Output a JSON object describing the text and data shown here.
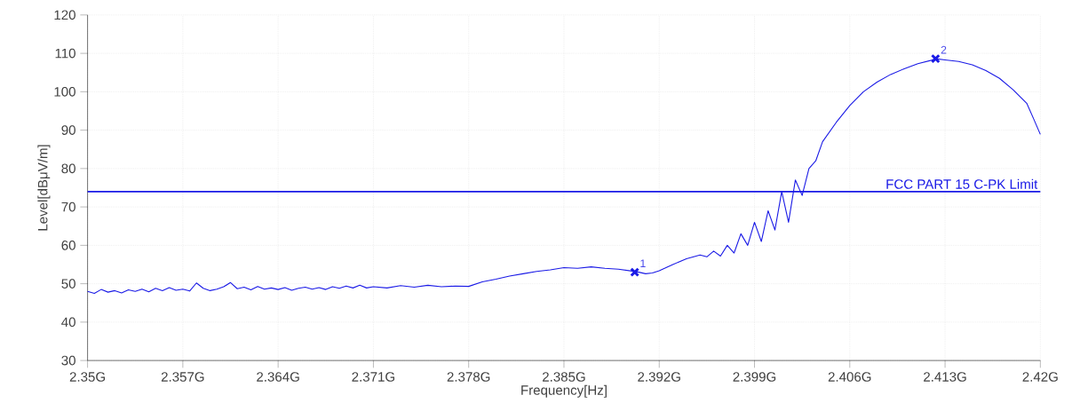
{
  "chart_data": {
    "type": "line",
    "xlabel": "Frequency[Hz]",
    "ylabel": "Level[dBμV/m]",
    "xlim": [
      2.35,
      2.42
    ],
    "ylim": [
      30,
      120
    ],
    "xticks": [
      {
        "value": 2.35,
        "label": "2.35G"
      },
      {
        "value": 2.357,
        "label": "2.357G"
      },
      {
        "value": 2.364,
        "label": "2.364G"
      },
      {
        "value": 2.371,
        "label": "2.371G"
      },
      {
        "value": 2.378,
        "label": "2.378G"
      },
      {
        "value": 2.385,
        "label": "2.385G"
      },
      {
        "value": 2.392,
        "label": "2.392G"
      },
      {
        "value": 2.399,
        "label": "2.399G"
      },
      {
        "value": 2.406,
        "label": "2.406G"
      },
      {
        "value": 2.413,
        "label": "2.413G"
      },
      {
        "value": 2.42,
        "label": "2.42G"
      }
    ],
    "yticks": [
      30,
      40,
      50,
      60,
      70,
      80,
      90,
      100,
      110,
      120
    ],
    "grid": true,
    "series": [
      {
        "color": "#1a1ae6",
        "marker": "none",
        "line_style": "solid",
        "x": [
          2.35,
          2.3505,
          2.351,
          2.3515,
          2.352,
          2.3525,
          2.353,
          2.3535,
          2.354,
          2.3545,
          2.355,
          2.3555,
          2.356,
          2.3565,
          2.357,
          2.3575,
          2.358,
          2.3585,
          2.359,
          2.3595,
          2.36,
          2.3605,
          2.361,
          2.3615,
          2.362,
          2.3625,
          2.363,
          2.3635,
          2.364,
          2.3645,
          2.365,
          2.3655,
          2.366,
          2.3665,
          2.367,
          2.3675,
          2.368,
          2.3685,
          2.369,
          2.3695,
          2.37,
          2.3705,
          2.371,
          2.372,
          2.373,
          2.374,
          2.375,
          2.376,
          2.377,
          2.378,
          2.379,
          2.38,
          2.381,
          2.382,
          2.383,
          2.384,
          2.385,
          2.386,
          2.387,
          2.388,
          2.389,
          2.39,
          2.3905,
          2.391,
          2.3915,
          2.392,
          2.393,
          2.394,
          2.395,
          2.3955,
          2.396,
          2.3965,
          2.397,
          2.3975,
          2.398,
          2.3985,
          2.399,
          2.3995,
          2.4,
          2.4005,
          2.401,
          2.4015,
          2.402,
          2.4025,
          2.403,
          2.4035,
          2.404,
          2.405,
          2.406,
          2.407,
          2.408,
          2.409,
          2.41,
          2.411,
          2.412,
          2.4123,
          2.413,
          2.414,
          2.415,
          2.416,
          2.417,
          2.418,
          2.419,
          2.4195,
          2.42
        ],
        "values": [
          48,
          47.5,
          48.5,
          47.8,
          48.2,
          47.6,
          48.4,
          48.0,
          48.6,
          47.9,
          48.8,
          48.2,
          49.0,
          48.3,
          48.6,
          48.1,
          50.2,
          48.8,
          48.2,
          48.6,
          49.2,
          50.3,
          48.7,
          49.1,
          48.4,
          49.3,
          48.6,
          48.9,
          48.5,
          49.0,
          48.3,
          48.8,
          49.1,
          48.6,
          49.0,
          48.5,
          49.2,
          48.8,
          49.4,
          48.9,
          49.6,
          48.9,
          49.2,
          48.9,
          49.5,
          49.1,
          49.6,
          49.2,
          49.4,
          49.3,
          50.5,
          51.2,
          52.0,
          52.6,
          53.2,
          53.6,
          54.2,
          54.0,
          54.4,
          54.0,
          53.8,
          53.3,
          53.0,
          52.6,
          52.8,
          53.4,
          55.0,
          56.5,
          57.5,
          57.0,
          58.5,
          57.2,
          60.0,
          58.0,
          63.0,
          60.0,
          66.0,
          61.0,
          69.0,
          64.0,
          74.0,
          66.0,
          77.0,
          73.0,
          80.0,
          82.0,
          87.0,
          92.0,
          96.4,
          100.0,
          102.5,
          104.5,
          106.0,
          107.3,
          108.2,
          108.6,
          108.3,
          107.9,
          107.0,
          105.5,
          103.5,
          100.5,
          97.0,
          93.0,
          88.9
        ]
      },
      {
        "type": "scatter",
        "color": "#1a1ae6",
        "marker": "cross",
        "x": [
          2.3902,
          2.4123
        ],
        "values": [
          53,
          108.6
        ]
      }
    ],
    "ref_lines": [
      {
        "axis": "y",
        "value": 74,
        "label": "FCC PART 15 C-PK Limit",
        "color": "#1a1ae6"
      }
    ],
    "annotations": [
      {
        "text": "1",
        "x": 2.3902,
        "y": 53
      },
      {
        "text": "2",
        "x": 2.4123,
        "y": 108.6
      }
    ]
  }
}
